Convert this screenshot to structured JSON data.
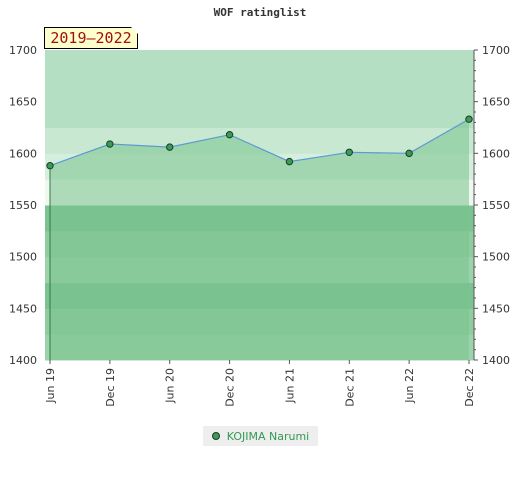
{
  "chart_data": {
    "type": "area",
    "title": "WOF ratinglist",
    "badge": "2019–2022",
    "x": [
      "Jun 19",
      "Dec 19",
      "Jun 20",
      "Dec 20",
      "Jun 21",
      "Dec 21",
      "Jun 22",
      "Dec 22"
    ],
    "series": [
      {
        "name": "KOJIMA Narumi",
        "values": [
          1588,
          1609,
          1606,
          1618,
          1592,
          1601,
          1600,
          1633
        ]
      }
    ],
    "ylim": [
      1400,
      1700
    ],
    "yticks": [
      1400,
      1450,
      1500,
      1550,
      1600,
      1650,
      1700
    ],
    "grid": true,
    "legend_position": "bottom",
    "colors": {
      "line": "#5b9bd5",
      "marker_fill": "#3a9a5a",
      "marker_stroke": "#1d3d26",
      "area_fill": "#78c28d",
      "legend_text": "#339955",
      "badge_text": "#a01010",
      "badge_bg": "#ffffcc"
    }
  }
}
